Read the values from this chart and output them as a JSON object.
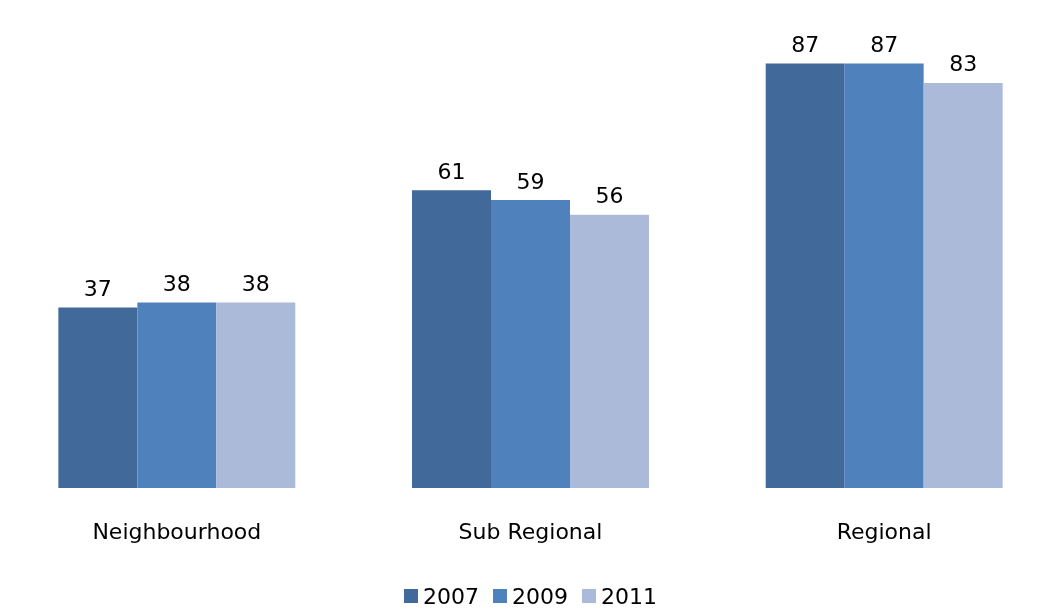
{
  "chart_data": {
    "type": "bar",
    "categories": [
      "Neighbourhood",
      "Sub Regional",
      "Regional"
    ],
    "series": [
      {
        "name": "2007",
        "color": "#41699a",
        "values": [
          37,
          61,
          87
        ]
      },
      {
        "name": "2009",
        "color": "#4f81bd",
        "values": [
          38,
          59,
          87
        ]
      },
      {
        "name": "2011",
        "color": "#aabad8",
        "values": [
          38,
          56,
          83
        ]
      }
    ],
    "data_labels": true,
    "legend": "bottom",
    "grid": false
  }
}
